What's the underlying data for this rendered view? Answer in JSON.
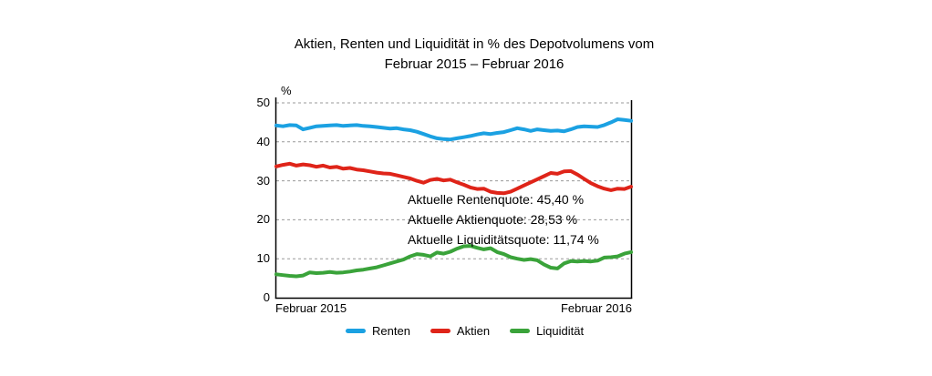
{
  "title": {
    "line1": "Aktien, Renten und Liquidität in % des Depotvolumens vom",
    "line2": "Februar 2015 – Februar 2016"
  },
  "axes": {
    "y_unit": "%",
    "y_ticks": [
      0,
      10,
      20,
      30,
      40,
      50
    ],
    "x_start_label": "Februar 2015",
    "x_end_label": "Februar 2016"
  },
  "annotations": [
    "Aktuelle Rentenquote: 45,40 %",
    "Aktuelle Aktienquote: 28,53 %",
    "Aktuelle Liquiditätsquote: 11,74 %"
  ],
  "colors": {
    "renten": "#1ba1e2",
    "aktien": "#df2419",
    "liquiditaet": "#3aa33a",
    "grid": "#999999",
    "axis": "#000000"
  },
  "chart_data": {
    "type": "line",
    "title": "Aktien, Renten und Liquidität in % des Depotvolumens vom Februar 2015 – Februar 2016",
    "xlabel": "",
    "ylabel": "%",
    "ylim": [
      0,
      50
    ],
    "x_range": [
      "Februar 2015",
      "Februar 2016"
    ],
    "x_unit": "weeks",
    "grid": "horizontal dashed at 10,20,30,40,50",
    "legend_position": "bottom",
    "current_values": {
      "Renten": "45,40 %",
      "Aktien": "28,53 %",
      "Liquidität": "11,74 %"
    },
    "series": [
      {
        "name": "Renten",
        "color": "#1ba1e2",
        "values": [
          44.2,
          44.0,
          44.3,
          44.2,
          43.2,
          43.6,
          44.0,
          44.1,
          44.2,
          44.3,
          44.1,
          44.2,
          44.3,
          44.1,
          44.0,
          43.8,
          43.6,
          43.4,
          43.5,
          43.2,
          43.0,
          42.6,
          42.0,
          41.4,
          40.9,
          40.7,
          40.6,
          40.9,
          41.2,
          41.5,
          41.9,
          42.2,
          42.0,
          42.3,
          42.5,
          43.0,
          43.5,
          43.2,
          42.8,
          43.2,
          43.0,
          42.8,
          42.9,
          42.7,
          43.2,
          43.8,
          44.0,
          43.9,
          43.8,
          44.3,
          45.0,
          45.8,
          45.6,
          45.4
        ]
      },
      {
        "name": "Aktien",
        "color": "#df2419",
        "values": [
          33.7,
          34.1,
          34.4,
          33.9,
          34.2,
          34.0,
          33.6,
          33.9,
          33.4,
          33.6,
          33.1,
          33.3,
          32.9,
          32.7,
          32.4,
          32.1,
          31.9,
          31.8,
          31.4,
          31.0,
          30.6,
          30.0,
          29.5,
          30.2,
          30.5,
          30.1,
          30.3,
          29.6,
          29.0,
          28.3,
          27.9,
          28.0,
          27.2,
          26.9,
          26.8,
          27.2,
          28.0,
          28.8,
          29.6,
          30.4,
          31.2,
          32.0,
          31.8,
          32.4,
          32.5,
          31.6,
          30.5,
          29.4,
          28.6,
          28.0,
          27.6,
          28.0,
          27.9,
          28.5
        ]
      },
      {
        "name": "Liquidität",
        "color": "#3aa33a",
        "values": [
          6.0,
          5.8,
          5.6,
          5.5,
          5.7,
          6.5,
          6.3,
          6.4,
          6.6,
          6.4,
          6.5,
          6.7,
          7.0,
          7.2,
          7.5,
          7.8,
          8.3,
          8.8,
          9.3,
          9.8,
          10.6,
          11.2,
          11.0,
          10.6,
          11.6,
          11.3,
          11.8,
          12.6,
          13.2,
          13.3,
          12.8,
          12.4,
          12.7,
          11.7,
          11.2,
          10.4,
          10.0,
          9.7,
          9.9,
          9.6,
          8.5,
          7.7,
          7.5,
          8.8,
          9.4,
          9.3,
          9.4,
          9.3,
          9.5,
          10.3,
          10.4,
          10.6,
          11.3,
          11.7
        ]
      }
    ]
  }
}
